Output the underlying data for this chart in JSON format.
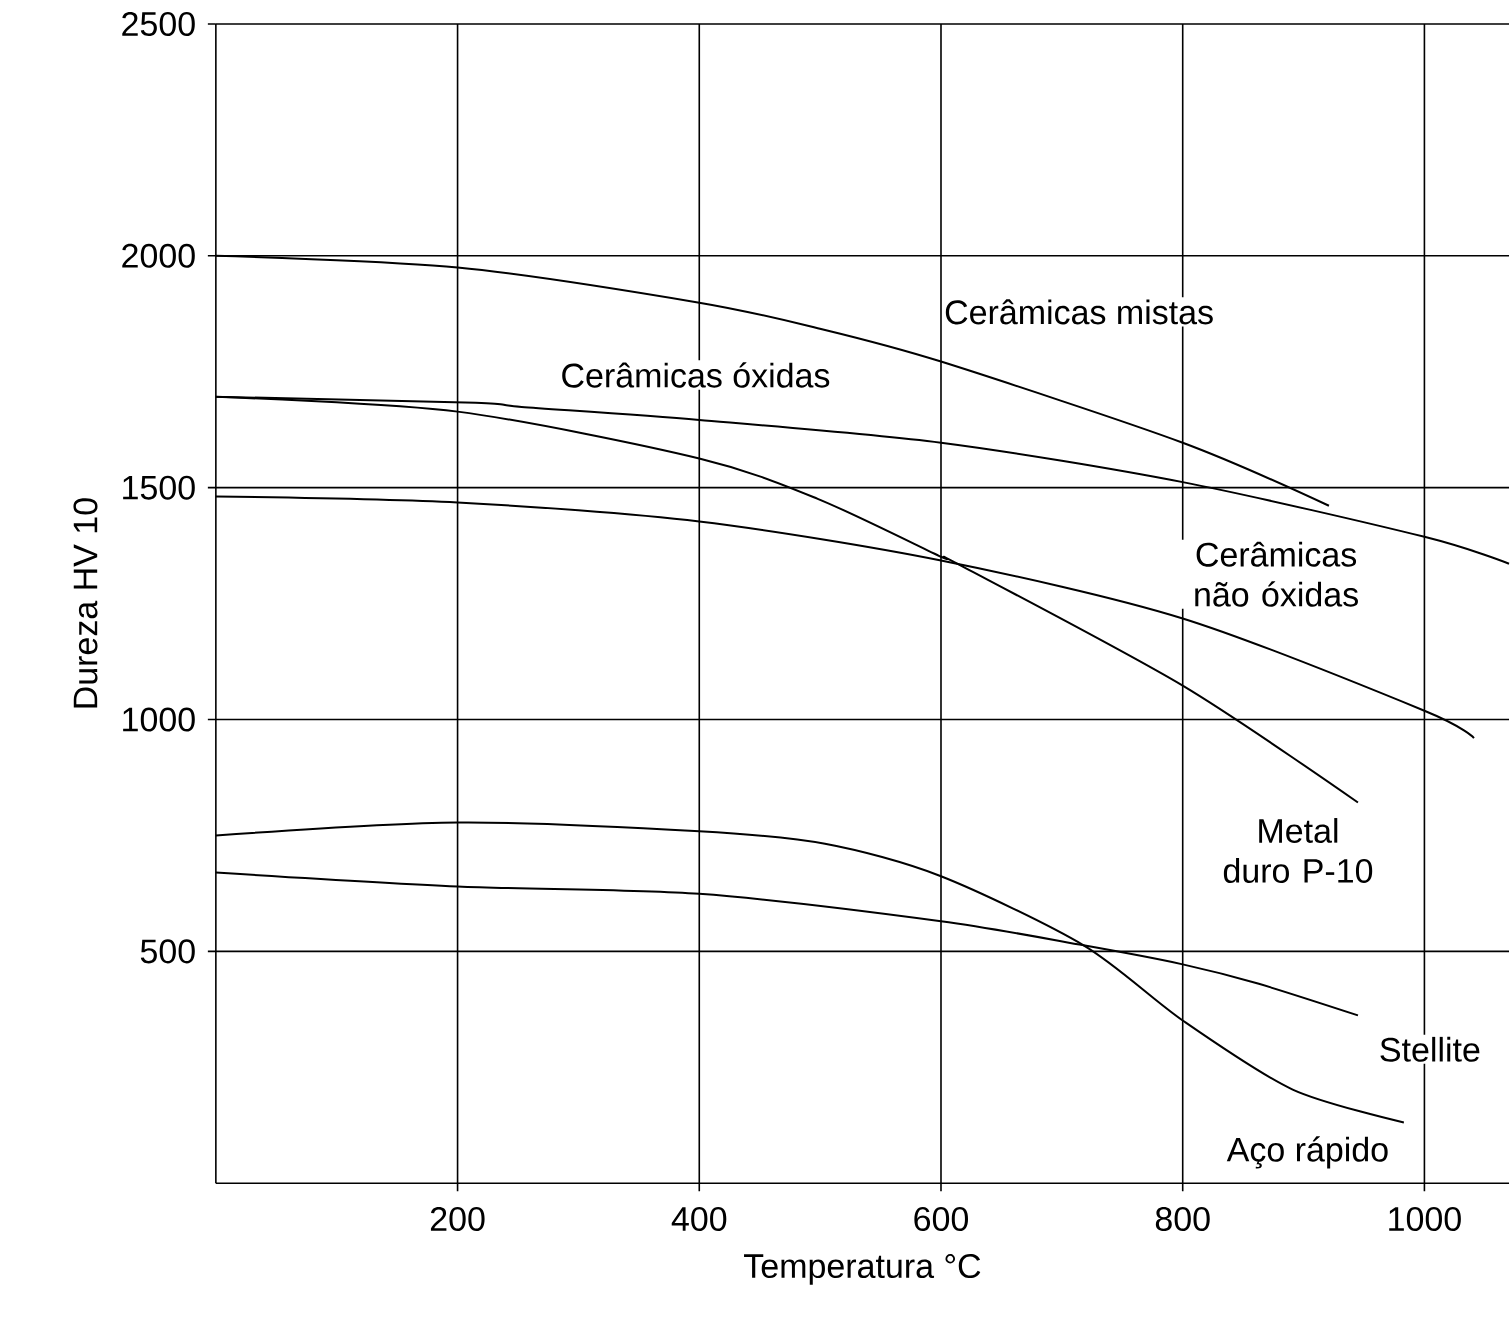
{
  "chart_data": {
    "type": "line",
    "xlabel": "Temperatura °C",
    "ylabel": "Dureza HV 10",
    "xlim": [
      0,
      1070
    ],
    "ylim": [
      0,
      2500
    ],
    "xticks": [
      200,
      400,
      600,
      800,
      1000
    ],
    "yticks": [
      500,
      1000,
      1500,
      2000,
      2500
    ],
    "grid": true,
    "legend": false,
    "marker": "none",
    "line_style": "solid",
    "series": [
      {
        "name": "Cerâmicas mistas",
        "color": "#000000",
        "x": [
          0,
          200,
          400,
          498,
          600,
          800,
          921
        ],
        "values": [
          2000,
          1975,
          1899,
          1844,
          1772,
          1597,
          1461
        ]
      },
      {
        "name": "Cerâmicas óxidas",
        "color": "#000000",
        "x": [
          0,
          215,
          253,
          400,
          600,
          800,
          1000,
          1070
        ],
        "values": [
          1696,
          1683,
          1674,
          1646,
          1597,
          1512,
          1394,
          1336
        ]
      },
      {
        "name": "Cerâmicas não óxidas",
        "color": "#000000",
        "x": [
          0,
          200,
          400,
          600,
          800,
          1000,
          1041
        ],
        "values": [
          1481,
          1468,
          1427,
          1343,
          1218,
          1019,
          960
        ]
      },
      {
        "name": "Metal duro P-10",
        "color": "#000000",
        "x": [
          0,
          200,
          400,
          498,
          600,
          615,
          800,
          945
        ],
        "values": [
          1696,
          1664,
          1563,
          1476,
          1351,
          1334,
          1073,
          821
        ]
      },
      {
        "name": "Stellite",
        "color": "#000000",
        "x": [
          0,
          200,
          400,
          600,
          718,
          800,
          863,
          945
        ],
        "values": [
          670,
          640,
          624,
          565,
          513,
          472,
          430,
          362
        ]
      },
      {
        "name": "Aço rápido",
        "color": "#000000",
        "x": [
          0,
          200,
          400,
          504,
          600,
          718,
          800,
          891,
          983
        ],
        "values": [
          750,
          778,
          759,
          732,
          662,
          513,
          351,
          202,
          131
        ]
      }
    ]
  }
}
